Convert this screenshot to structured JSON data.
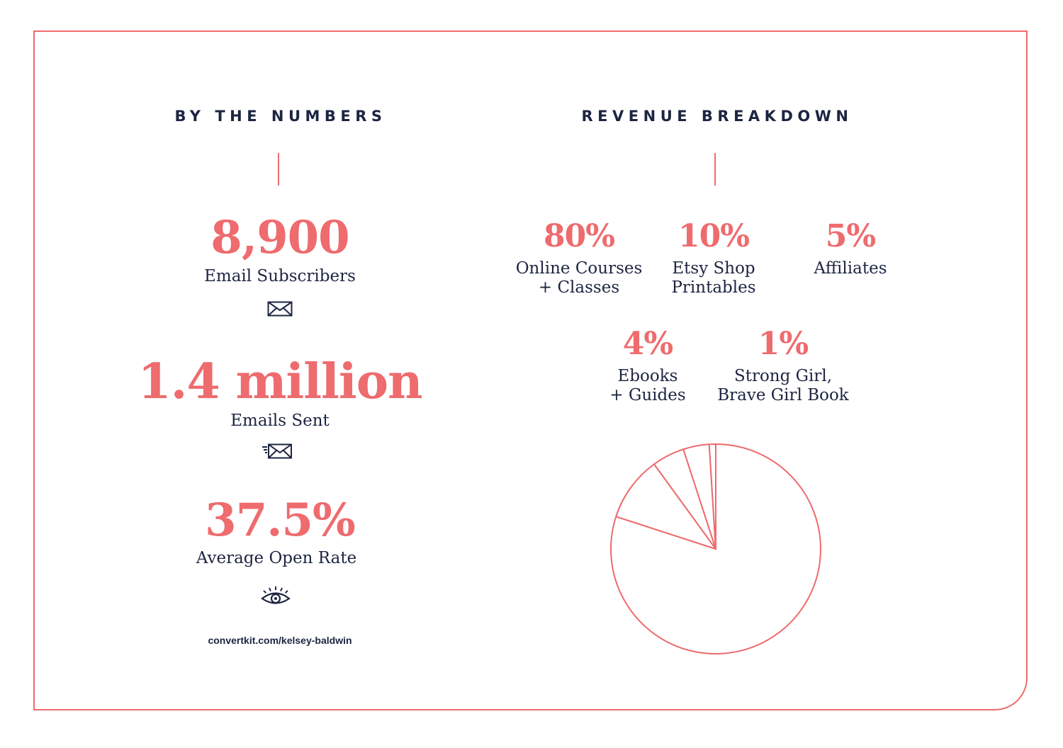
{
  "left": {
    "heading": "BY THE NUMBERS",
    "stats": [
      {
        "value": "8,900",
        "label": "Email Subscribers",
        "icon": "envelope-icon"
      },
      {
        "value": "1.4 million",
        "label": "Emails Sent",
        "icon": "sent-envelope-icon"
      },
      {
        "value": "37.5%",
        "label": "Average Open Rate",
        "icon": "eye-icon"
      }
    ],
    "url": "convertkit.com/kelsey-baldwin"
  },
  "right": {
    "heading": "REVENUE BREAKDOWN"
  },
  "colors": {
    "accent": "#ee6b6e",
    "text": "#1c2541",
    "background": "#ffffff"
  },
  "chart_data": {
    "type": "pie",
    "categories": [
      "Online Courses\n+ Classes",
      "Etsy Shop\nPrintables",
      "Affiliates",
      "Ebooks\n+ Guides",
      "Strong Girl,\nBrave Girl Book"
    ],
    "labels": [
      "80%",
      "10%",
      "5%",
      "4%",
      "1%"
    ],
    "values": [
      80,
      10,
      5,
      4,
      1
    ],
    "title": "REVENUE BREAKDOWN",
    "legend": "top"
  }
}
